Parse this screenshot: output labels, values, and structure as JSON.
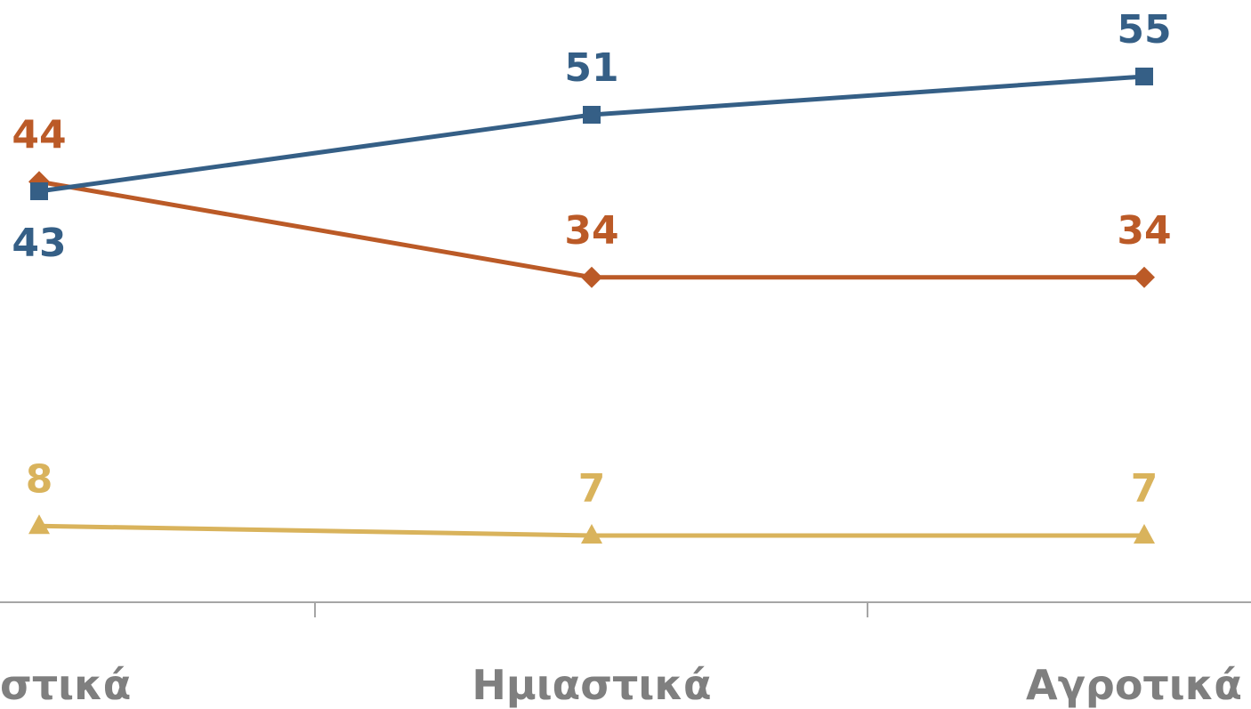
{
  "chart_data": {
    "type": "line",
    "categories": [
      "Αστικά",
      "Ημιαστικά",
      "Αγροτικά"
    ],
    "visible_category_text": [
      "στικά",
      "Ημιαστικά",
      "Αγροτικά"
    ],
    "series": [
      {
        "values": [
          43,
          51,
          55
        ],
        "color": "#355f86",
        "marker": "square",
        "label_position": [
          "below",
          "above",
          "above"
        ]
      },
      {
        "values": [
          44,
          34,
          34
        ],
        "color": "#bb5a27",
        "marker": "diamond",
        "label_position": [
          "above",
          "above",
          "above"
        ]
      },
      {
        "values": [
          8,
          7,
          7
        ],
        "color": "#d9b35c",
        "marker": "triangle",
        "label_position": [
          "above",
          "above",
          "above"
        ]
      }
    ],
    "title": "",
    "xlabel": "",
    "ylabel": "",
    "ylim": [
      0,
      60
    ],
    "grid": false,
    "legend": "none",
    "axis_color": "#a6a6a6",
    "category_label_color": "#7f7f7f"
  }
}
